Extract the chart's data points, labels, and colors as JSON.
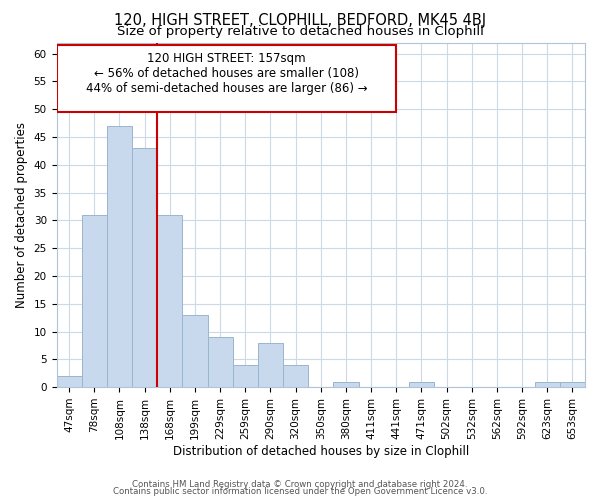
{
  "title_line1": "120, HIGH STREET, CLOPHILL, BEDFORD, MK45 4BJ",
  "title_line2": "Size of property relative to detached houses in Clophill",
  "xlabel": "Distribution of detached houses by size in Clophill",
  "ylabel": "Number of detached properties",
  "categories": [
    "47sqm",
    "78sqm",
    "108sqm",
    "138sqm",
    "168sqm",
    "199sqm",
    "229sqm",
    "259sqm",
    "290sqm",
    "320sqm",
    "350sqm",
    "380sqm",
    "411sqm",
    "441sqm",
    "471sqm",
    "502sqm",
    "532sqm",
    "562sqm",
    "592sqm",
    "623sqm",
    "653sqm"
  ],
  "values": [
    2,
    31,
    47,
    43,
    31,
    13,
    9,
    4,
    8,
    4,
    0,
    1,
    0,
    0,
    1,
    0,
    0,
    0,
    0,
    1,
    1
  ],
  "bar_color": "#c8d9ed",
  "bar_edge_color": "#9ab5cf",
  "red_line_index": 3.5,
  "annotation_text_line1": "120 HIGH STREET: 157sqm",
  "annotation_text_line2": "← 56% of detached houses are smaller (108)",
  "annotation_text_line3": "44% of semi-detached houses are larger (86) →",
  "ylim": [
    0,
    62
  ],
  "yticks": [
    0,
    5,
    10,
    15,
    20,
    25,
    30,
    35,
    40,
    45,
    50,
    55,
    60
  ],
  "footer_line1": "Contains HM Land Registry data © Crown copyright and database right 2024.",
  "footer_line2": "Contains public sector information licensed under the Open Government Licence v3.0.",
  "background_color": "#ffffff",
  "grid_color": "#ccd9e8",
  "title_fontsize": 10.5,
  "subtitle_fontsize": 9.5,
  "tick_fontsize": 7.5,
  "ylabel_fontsize": 8.5,
  "xlabel_fontsize": 8.5,
  "annotation_fontsize": 8.5,
  "footer_fontsize": 6.2
}
